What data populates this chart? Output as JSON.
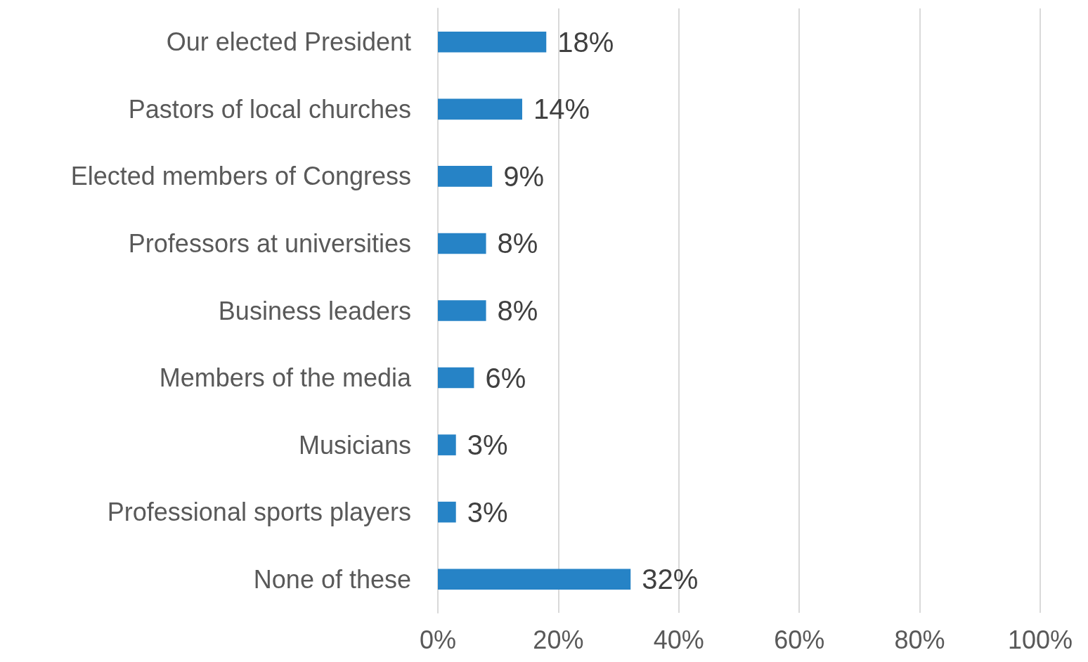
{
  "chart_data": {
    "type": "bar",
    "orientation": "horizontal",
    "categories": [
      "Our elected President",
      "Pastors of local churches",
      "Elected members of Congress",
      "Professors at universities",
      "Business leaders",
      "Members of the media",
      "Musicians",
      "Professional sports players",
      "None of these"
    ],
    "values": [
      18,
      14,
      9,
      8,
      8,
      6,
      3,
      3,
      32
    ],
    "value_labels": [
      "18%",
      "14%",
      "9%",
      "8%",
      "8%",
      "6%",
      "3%",
      "3%",
      "32%"
    ],
    "color": "#2683c6",
    "xlim": [
      0,
      100
    ],
    "xticks": [
      {
        "value": 0,
        "label": "0%"
      },
      {
        "value": 20,
        "label": "20%"
      },
      {
        "value": 40,
        "label": "40%"
      },
      {
        "value": 60,
        "label": "60%"
      },
      {
        "value": 80,
        "label": "80%"
      },
      {
        "value": 100,
        "label": "100%"
      }
    ],
    "grid": "x"
  }
}
